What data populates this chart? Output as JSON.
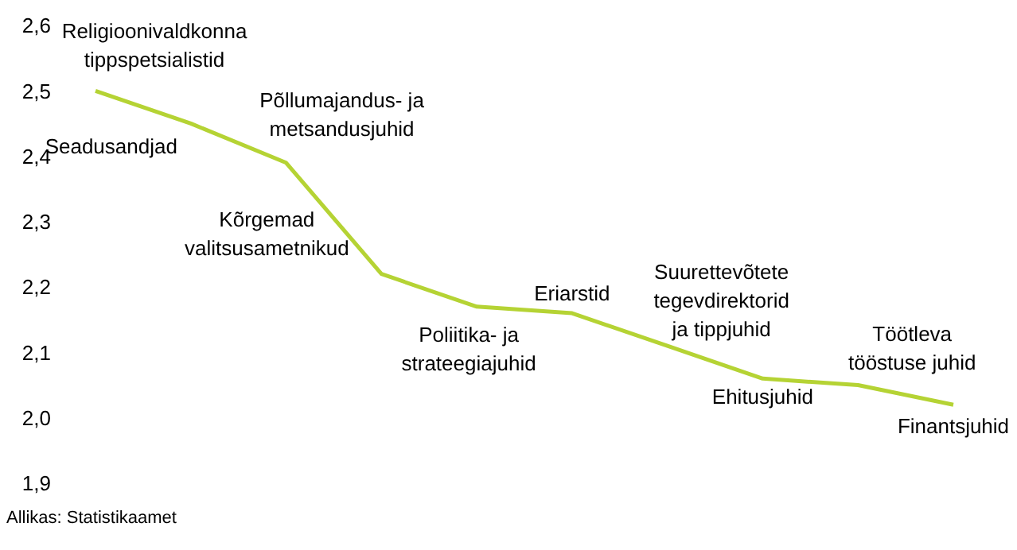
{
  "chart_data": {
    "type": "line",
    "categories": [
      null,
      null,
      null,
      null,
      null,
      null,
      null,
      null,
      null,
      null
    ],
    "series": [
      {
        "color": "#b5d334",
        "values": [
          2.5,
          2.45,
          2.39,
          2.22,
          2.17,
          2.16,
          2.11,
          2.06,
          2.05,
          2.02
        ]
      }
    ],
    "ylim": [
      1.9,
      2.6
    ],
    "yticks": [
      {
        "value": 1.9,
        "label": "1,9"
      },
      {
        "value": 2.0,
        "label": "2,0"
      },
      {
        "value": 2.1,
        "label": "2,1"
      },
      {
        "value": 2.2,
        "label": "2,2"
      },
      {
        "value": 2.3,
        "label": "2,3"
      },
      {
        "value": 2.4,
        "label": "2,4"
      },
      {
        "value": 2.5,
        "label": "2,5"
      },
      {
        "value": 2.6,
        "label": "2,6"
      }
    ],
    "tick_labels": "y",
    "annotations": [
      "Religioonivaldkonna tippspetsialistid",
      "Seadusandjad",
      "Põllumajandus- ja metsandusjuhid",
      "Kõrgemad valitsusametnikud",
      "Poliitika- ja strateegiajuhid",
      "Eriarstid",
      "Suurettevõtete tegevdirektorid ja tippjuhid",
      "Ehitusjuhid",
      "Töötleva tööstuse juhid",
      "Finantsjuhid",
      "Allikas: Statistikaamet"
    ]
  }
}
